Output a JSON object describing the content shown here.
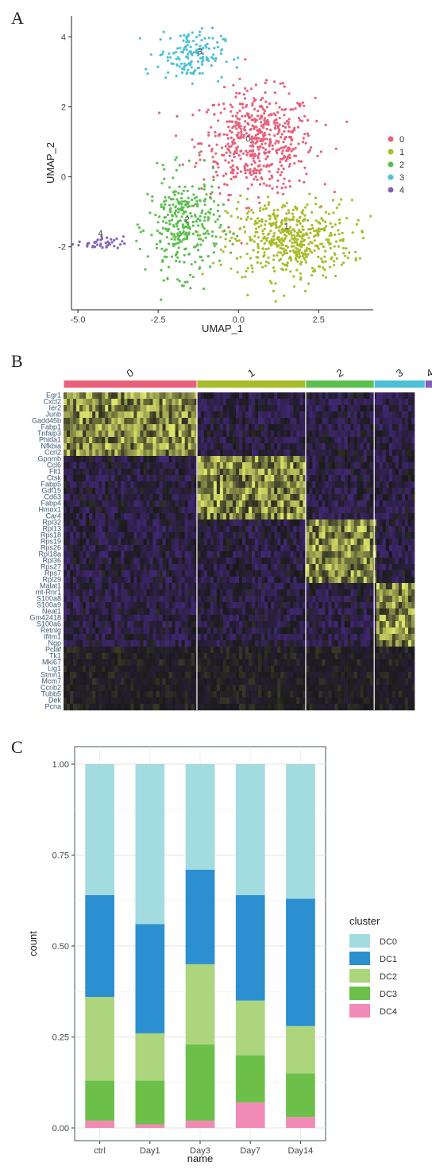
{
  "panel_labels": {
    "a": "A",
    "b": "B",
    "c": "C"
  },
  "colors": {
    "c0": "#e8607a",
    "c1": "#a8bc2a",
    "c2": "#5bbf4f",
    "c3": "#4cc0d6",
    "c4": "#8160b8",
    "DC0": "#a2dbe0",
    "DC1": "#2b8fd0",
    "DC2": "#acd57e",
    "DC3": "#6cc04a",
    "DC4": "#f18ab6",
    "heat_low": "#4b2a8c",
    "heat_mid": "#1a1a1a",
    "heat_high": "#e0e86a"
  },
  "chart_data": [
    {
      "type": "scatter",
      "xlabel": "UMAP_1",
      "ylabel": "UMAP_2",
      "xticks": [
        "-5.0",
        "-2.5",
        "0.0",
        "2.5"
      ],
      "yticks": [
        "-2",
        "0",
        "2",
        "4"
      ],
      "xlim": [
        -5.2,
        4.2
      ],
      "ylim": [
        -3.8,
        4.6
      ],
      "legend": [
        "0",
        "1",
        "2",
        "3",
        "4"
      ],
      "legend_position": "right",
      "cluster_labels": [
        {
          "text": "0",
          "x": 0.3,
          "y": 1.0
        },
        {
          "text": "1",
          "x": 1.5,
          "y": -1.5
        },
        {
          "text": "2",
          "x": -1.6,
          "y": -1.3
        },
        {
          "text": "3",
          "x": -1.2,
          "y": 3.5
        },
        {
          "text": "4",
          "x": -4.3,
          "y": -1.7
        }
      ],
      "clusters": [
        {
          "name": "0",
          "cx": 0.6,
          "cy": 1.0,
          "sx": 1.1,
          "sy": 0.9,
          "n": 560
        },
        {
          "name": "1",
          "cx": 1.6,
          "cy": -1.8,
          "sx": 1.2,
          "sy": 0.7,
          "n": 520
        },
        {
          "name": "2",
          "cx": -1.7,
          "cy": -1.4,
          "sx": 0.7,
          "sy": 0.9,
          "n": 320
        },
        {
          "name": "3",
          "cx": -1.5,
          "cy": 3.5,
          "sx": 0.65,
          "sy": 0.45,
          "n": 150
        },
        {
          "name": "4",
          "cx": -4.3,
          "cy": -1.9,
          "sx": 0.45,
          "sy": 0.12,
          "n": 40
        }
      ]
    },
    {
      "type": "heatmap",
      "cluster_names": [
        "0",
        "1",
        "2",
        "3",
        "4"
      ],
      "cluster_widths": [
        0.38,
        0.31,
        0.195,
        0.145,
        0.027
      ],
      "genes": [
        "Egr1",
        "Cxcl2",
        "Ier2",
        "Junb",
        "Gadd45b",
        "Fabp1",
        "Tnfaip3",
        "Phlda1",
        "Nfkbia",
        "Ccrl2",
        "Gpnmb",
        "Ccl6",
        "Flt1",
        "Ctsk",
        "Fabp5",
        "Gdf15",
        "Cd63",
        "Fabp4",
        "Hmox1",
        "Car4",
        "Rpl32",
        "Rpl13",
        "Rps18",
        "Rps19",
        "Rps26",
        "Rpl18a",
        "Rpl36",
        "Rps27",
        "Rps7",
        "Rpl29",
        "Malat1",
        "mt-Rnr1",
        "S100a8",
        "S100a9",
        "Neat1",
        "Gm42418",
        "S100a6",
        "Retnlg",
        "Ifitm1",
        "Ngp",
        "Pclaf",
        "Tk1",
        "Mki67",
        "Lig1",
        "Stmn1",
        "Mcm7",
        "Ccnb2",
        "Tubb5",
        "Dek",
        "Pcna"
      ],
      "gene_groups": [
        10,
        10,
        10,
        10,
        10
      ]
    },
    {
      "type": "bar",
      "stacked": true,
      "xlabel": "name",
      "ylabel": "count",
      "categories": [
        "ctrl",
        "Day1",
        "Day3",
        "Day7",
        "Day14"
      ],
      "yticks": [
        "0.00",
        "0.25",
        "0.50",
        "0.75",
        "1.00"
      ],
      "ylim": [
        0,
        1
      ],
      "legend_title": "cluster",
      "legend": [
        "DC0",
        "DC1",
        "DC2",
        "DC3",
        "DC4"
      ],
      "legend_position": "right",
      "series": [
        {
          "name": "DC4",
          "values": [
            0.02,
            0.01,
            0.02,
            0.07,
            0.03
          ]
        },
        {
          "name": "DC3",
          "values": [
            0.11,
            0.12,
            0.21,
            0.13,
            0.12
          ]
        },
        {
          "name": "DC2",
          "values": [
            0.23,
            0.13,
            0.22,
            0.15,
            0.13
          ]
        },
        {
          "name": "DC1",
          "values": [
            0.28,
            0.3,
            0.26,
            0.29,
            0.35
          ]
        },
        {
          "name": "DC0",
          "values": [
            0.36,
            0.44,
            0.29,
            0.36,
            0.37
          ]
        }
      ]
    }
  ]
}
